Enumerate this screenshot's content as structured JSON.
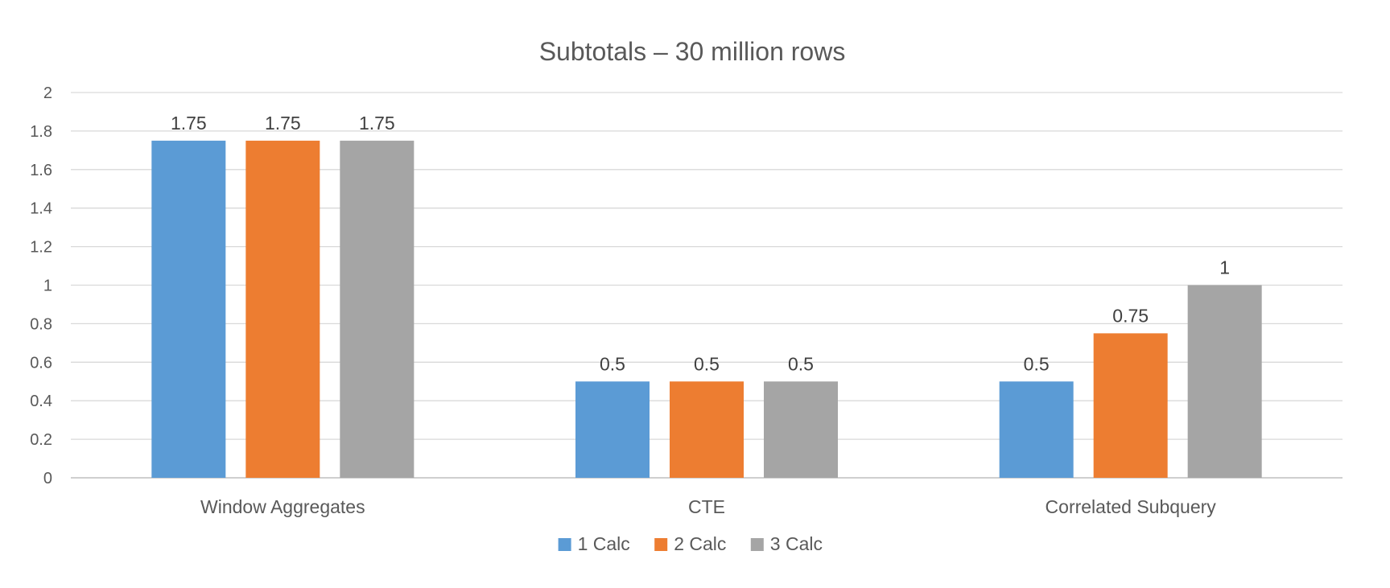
{
  "chart_data": {
    "type": "bar",
    "title": "Subtotals – 30 million rows",
    "categories": [
      "Window Aggregates",
      "CTE",
      "Correlated Subquery"
    ],
    "series": [
      {
        "name": "1 Calc",
        "values": [
          1.75,
          0.5,
          0.5
        ],
        "labels": [
          "1.75",
          "0.5",
          "0.5"
        ],
        "color": "#5b9bd5"
      },
      {
        "name": "2 Calc",
        "values": [
          1.75,
          0.5,
          0.75
        ],
        "labels": [
          "1.75",
          "0.5",
          "0.75"
        ],
        "color": "#ed7d31"
      },
      {
        "name": "3 Calc",
        "values": [
          1.75,
          0.5,
          1
        ],
        "labels": [
          "1.75",
          "0.5",
          "1"
        ],
        "color": "#a5a5a5"
      }
    ],
    "ylim": [
      0,
      2
    ],
    "yticks": [
      "0",
      "0.2",
      "0.4",
      "0.6",
      "0.8",
      "1",
      "1.2",
      "1.4",
      "1.6",
      "1.8",
      "2"
    ],
    "grid": true,
    "legend": "bottom"
  }
}
